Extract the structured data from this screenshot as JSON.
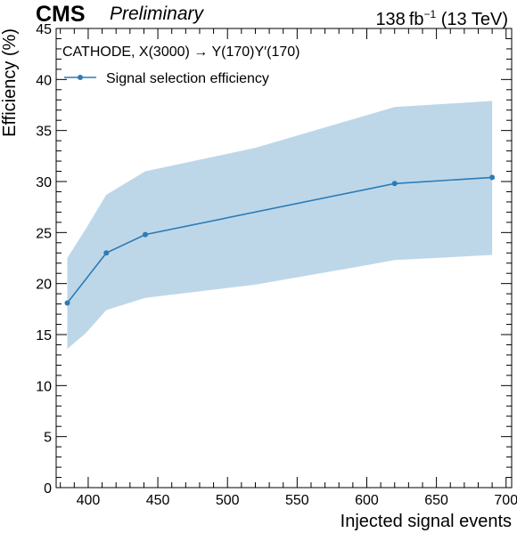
{
  "header": {
    "experiment": "CMS",
    "status": "Preliminary",
    "lumi_value": "138",
    "lumi_unit": "fb",
    "lumi_exponent": "−1",
    "energy": "(13 TeV)"
  },
  "colors": {
    "line": "#2c7bb6",
    "band": "#bdd7e9",
    "axis": "#000000"
  },
  "chart_data": {
    "type": "line",
    "title": "",
    "xlabel": "Injected signal events",
    "ylabel": "Efficiency (%)",
    "annotation": "CATHODE, X(3000) → Y(170)Y′(170)",
    "xlim": [
      377,
      704
    ],
    "ylim": [
      0,
      45
    ],
    "xticks": [
      400,
      450,
      500,
      550,
      600,
      650,
      700
    ],
    "yticks": [
      0,
      5,
      10,
      15,
      20,
      25,
      30,
      35,
      40,
      45
    ],
    "legend_position": "top-left",
    "series": [
      {
        "name": "Signal selection efficiency",
        "x": [
          385,
          413,
          441,
          620,
          690
        ],
        "y": [
          18.1,
          23.0,
          24.8,
          29.8,
          30.4
        ]
      }
    ],
    "band": {
      "x": [
        385,
        398,
        413,
        441,
        520,
        600,
        620,
        690
      ],
      "upper": [
        22.5,
        25.3,
        28.7,
        31.0,
        33.3,
        36.5,
        37.3,
        37.9
      ],
      "lower": [
        13.6,
        15.1,
        17.4,
        18.6,
        19.9,
        21.8,
        22.3,
        22.8
      ]
    }
  }
}
